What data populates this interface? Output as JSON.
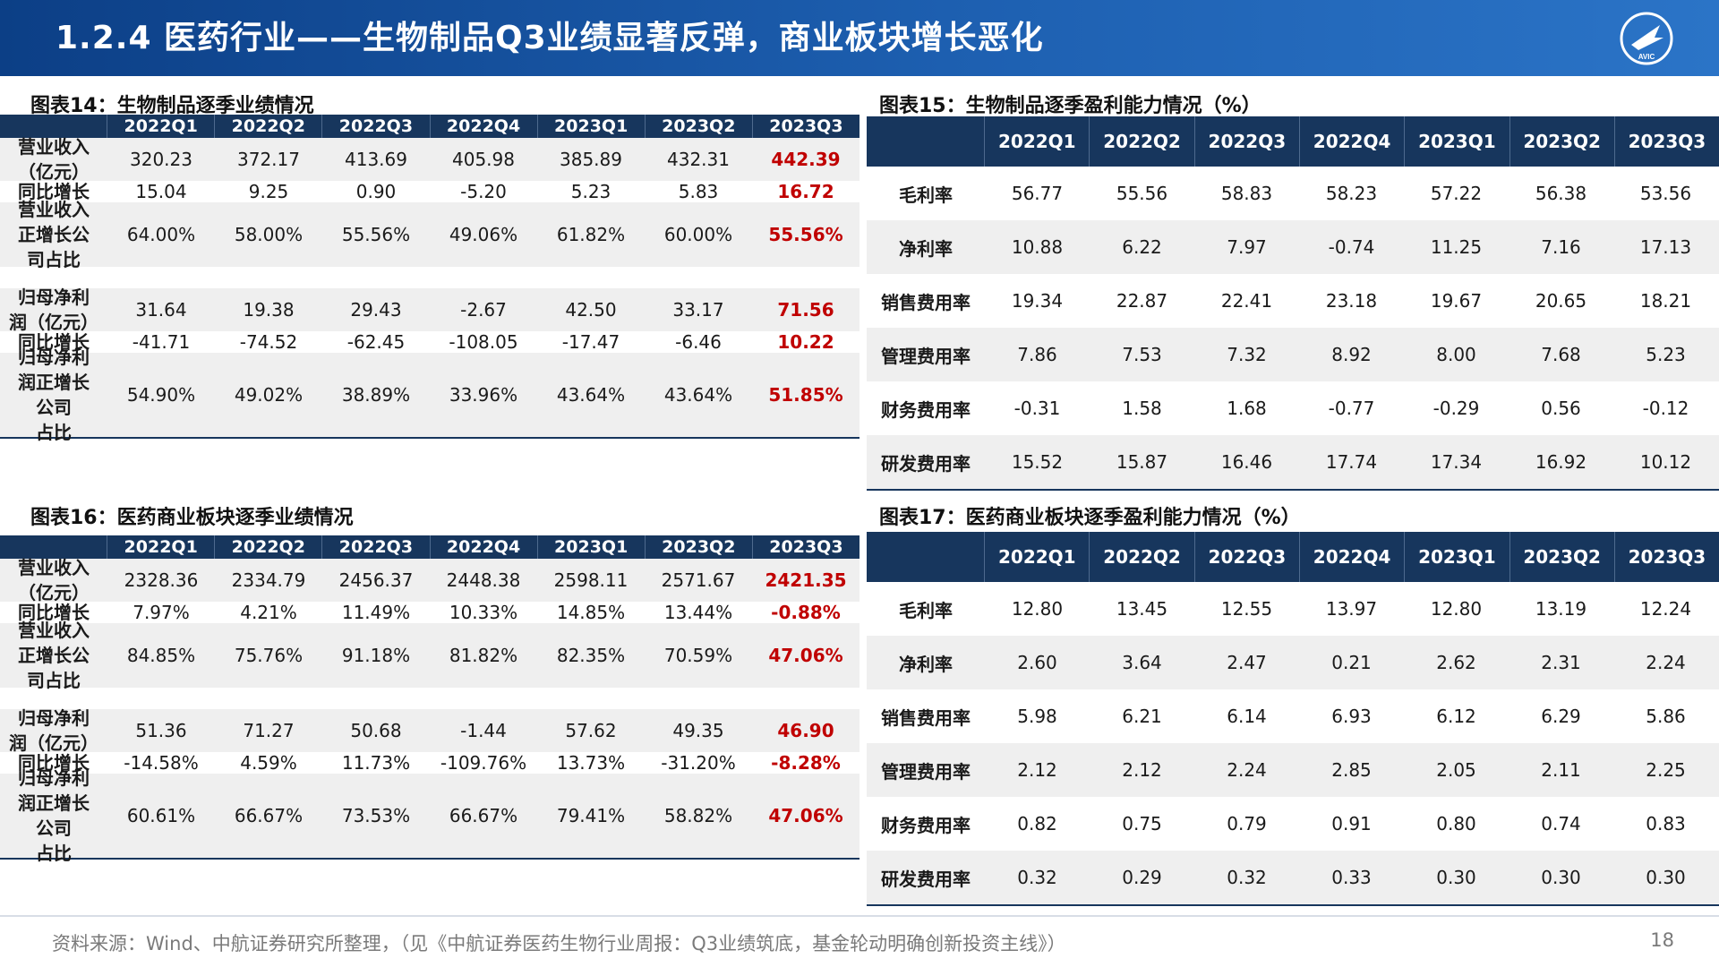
{
  "header": {
    "title": "1.2.4 医药行业——生物制品Q3业绩显著反弹，商业板块增长恶化",
    "logo_text": "AVIC"
  },
  "quarters": [
    "2022Q1",
    "2022Q2",
    "2022Q3",
    "2022Q4",
    "2023Q1",
    "2023Q2",
    "2023Q3"
  ],
  "tables": {
    "t14": {
      "title": "图表14：生物制品逐季业绩情况",
      "rows": [
        {
          "label": [
            "营业收入",
            "（亿元）"
          ],
          "values": [
            "320.23",
            "372.17",
            "413.69",
            "405.98",
            "385.89",
            "432.31",
            "442.39"
          ]
        },
        {
          "label": [
            "同比增长"
          ],
          "values": [
            "15.04",
            "9.25",
            "0.90",
            "-5.20",
            "5.23",
            "5.83",
            "16.72"
          ]
        },
        {
          "label": [
            "营业收入",
            "正增长公",
            "司占比"
          ],
          "values": [
            "64.00%",
            "58.00%",
            "55.56%",
            "49.06%",
            "61.82%",
            "60.00%",
            "55.56%"
          ]
        },
        {
          "label": [],
          "values": [
            "",
            "",
            "",
            "",
            "",
            "",
            ""
          ]
        },
        {
          "label": [
            "归母净利",
            "润（亿元）"
          ],
          "values": [
            "31.64",
            "19.38",
            "29.43",
            "-2.67",
            "42.50",
            "33.17",
            "71.56"
          ]
        },
        {
          "label": [
            "同比增长"
          ],
          "values": [
            "-41.71",
            "-74.52",
            "-62.45",
            "-108.05",
            "-17.47",
            "-6.46",
            "10.22"
          ]
        },
        {
          "label": [
            "归母净利",
            "润正增长",
            "公司",
            "占比"
          ],
          "values": [
            "54.90%",
            "49.02%",
            "38.89%",
            "33.96%",
            "43.64%",
            "43.64%",
            "51.85%"
          ]
        }
      ]
    },
    "t15": {
      "title": "图表15：生物制品逐季盈利能力情况（%）",
      "rows": [
        {
          "label": "毛利率",
          "values": [
            "56.77",
            "55.56",
            "58.83",
            "58.23",
            "57.22",
            "56.38",
            "53.56"
          ]
        },
        {
          "label": "净利率",
          "values": [
            "10.88",
            "6.22",
            "7.97",
            "-0.74",
            "11.25",
            "7.16",
            "17.13"
          ]
        },
        {
          "label": "销售费用率",
          "values": [
            "19.34",
            "22.87",
            "22.41",
            "23.18",
            "19.67",
            "20.65",
            "18.21"
          ]
        },
        {
          "label": "管理费用率",
          "values": [
            "7.86",
            "7.53",
            "7.32",
            "8.92",
            "8.00",
            "7.68",
            "5.23"
          ]
        },
        {
          "label": "财务费用率",
          "values": [
            "-0.31",
            "1.58",
            "1.68",
            "-0.77",
            "-0.29",
            "0.56",
            "-0.12"
          ]
        },
        {
          "label": "研发费用率",
          "values": [
            "15.52",
            "15.87",
            "16.46",
            "17.74",
            "17.34",
            "16.92",
            "10.12"
          ]
        }
      ]
    },
    "t16": {
      "title": "图表16：医药商业板块逐季业绩情况",
      "rows": [
        {
          "label": [
            "营业收入",
            "（亿元）"
          ],
          "values": [
            "2328.36",
            "2334.79",
            "2456.37",
            "2448.38",
            "2598.11",
            "2571.67",
            "2421.35"
          ]
        },
        {
          "label": [
            "同比增长"
          ],
          "values": [
            "7.97%",
            "4.21%",
            "11.49%",
            "10.33%",
            "14.85%",
            "13.44%",
            "-0.88%"
          ]
        },
        {
          "label": [
            "营业收入",
            "正增长公",
            "司占比"
          ],
          "values": [
            "84.85%",
            "75.76%",
            "91.18%",
            "81.82%",
            "82.35%",
            "70.59%",
            "47.06%"
          ]
        },
        {
          "label": [],
          "values": [
            "",
            "",
            "",
            "",
            "",
            "",
            ""
          ]
        },
        {
          "label": [
            "归母净利",
            "润（亿元）"
          ],
          "values": [
            "51.36",
            "71.27",
            "50.68",
            "-1.44",
            "57.62",
            "49.35",
            "46.90"
          ]
        },
        {
          "label": [
            "同比增长"
          ],
          "values": [
            "-14.58%",
            "4.59%",
            "11.73%",
            "-109.76%",
            "13.73%",
            "-31.20%",
            "-8.28%"
          ]
        },
        {
          "label": [
            "归母净利",
            "润正增长",
            "公司",
            "占比"
          ],
          "values": [
            "60.61%",
            "66.67%",
            "73.53%",
            "66.67%",
            "79.41%",
            "58.82%",
            "47.06%"
          ]
        }
      ]
    },
    "t17": {
      "title": "图表17：医药商业板块逐季盈利能力情况（%）",
      "rows": [
        {
          "label": "毛利率",
          "values": [
            "12.80",
            "13.45",
            "12.55",
            "13.97",
            "12.80",
            "13.19",
            "12.24"
          ]
        },
        {
          "label": "净利率",
          "values": [
            "2.60",
            "3.64",
            "2.47",
            "0.21",
            "2.62",
            "2.31",
            "2.24"
          ]
        },
        {
          "label": "销售费用率",
          "values": [
            "5.98",
            "6.21",
            "6.14",
            "6.93",
            "6.12",
            "6.29",
            "5.86"
          ]
        },
        {
          "label": "管理费用率",
          "values": [
            "2.12",
            "2.12",
            "2.24",
            "2.85",
            "2.05",
            "2.11",
            "2.25"
          ]
        },
        {
          "label": "财务费用率",
          "values": [
            "0.82",
            "0.75",
            "0.79",
            "0.91",
            "0.80",
            "0.74",
            "0.83"
          ]
        },
        {
          "label": "研发费用率",
          "values": [
            "0.32",
            "0.29",
            "0.32",
            "0.33",
            "0.30",
            "0.30",
            "0.30"
          ]
        }
      ]
    }
  },
  "colors": {
    "header_blue": "#17365d",
    "highlight_red": "#c00000",
    "shade": "#efefef"
  },
  "footer": {
    "source": "资料来源：Wind、中航证券研究所整理，（见《中航证券医药生物行业周报：Q3业绩筑底，基金轮动明确创新投资主线》）",
    "page": "18"
  }
}
